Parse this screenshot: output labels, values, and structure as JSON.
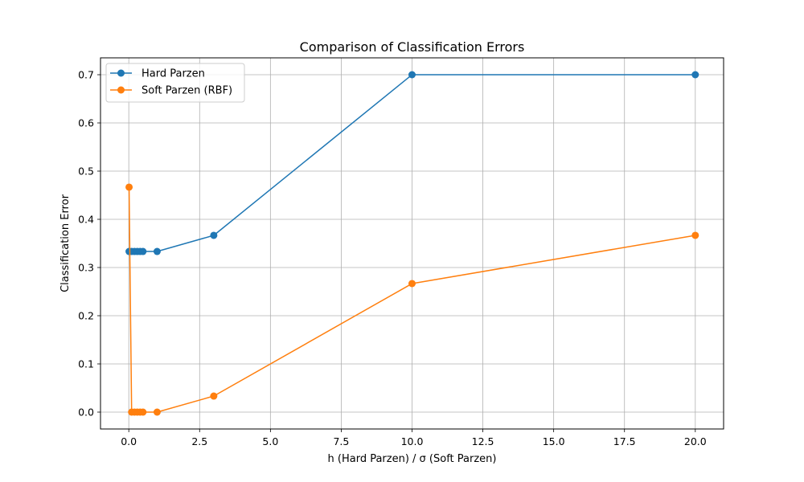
{
  "chart_data": {
    "type": "line",
    "title": "Comparison of Classification Errors",
    "xlabel": "h (Hard Parzen) / σ (Soft Parzen)",
    "ylabel": "Classification Error",
    "xlim": [
      -0.999,
      20.999
    ],
    "ylim": [
      -0.035,
      0.735
    ],
    "xticks": [
      0.0,
      2.5,
      5.0,
      7.5,
      10.0,
      12.5,
      15.0,
      17.5,
      20.0
    ],
    "xtick_labels": [
      "0.0",
      "2.5",
      "5.0",
      "7.5",
      "10.0",
      "12.5",
      "15.0",
      "17.5",
      "20.0"
    ],
    "yticks": [
      0.0,
      0.1,
      0.2,
      0.3,
      0.4,
      0.5,
      0.6,
      0.7
    ],
    "ytick_labels": [
      "0.0",
      "0.1",
      "0.2",
      "0.3",
      "0.4",
      "0.5",
      "0.6",
      "0.7"
    ],
    "grid": true,
    "legend_position": "top-left",
    "x": [
      0.01,
      0.1,
      0.2,
      0.3,
      0.4,
      0.5,
      1.0,
      3.0,
      10.0,
      20.0
    ],
    "series": [
      {
        "name": "Hard Parzen",
        "color": "#1f77b4",
        "values": [
          0.3333,
          0.3333,
          0.3333,
          0.3333,
          0.3333,
          0.3333,
          0.3333,
          0.3667,
          0.7,
          0.7
        ]
      },
      {
        "name": "Soft Parzen (RBF)",
        "color": "#ff7f0e",
        "values": [
          0.4667,
          0.0,
          0.0,
          0.0,
          0.0,
          0.0,
          0.0,
          0.0333,
          0.2667,
          0.3667
        ]
      }
    ]
  }
}
